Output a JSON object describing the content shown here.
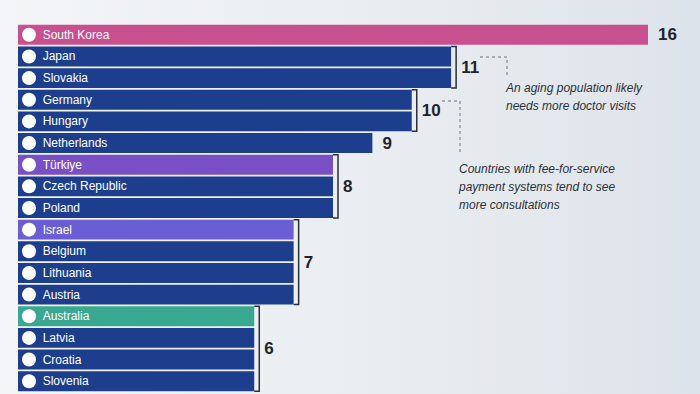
{
  "chart_data": {
    "type": "bar",
    "orientation": "horizontal",
    "categories": [
      "South Korea",
      "Japan",
      "Slovakia",
      "Germany",
      "Hungary",
      "Netherlands",
      "Türkiye",
      "Czech Republic",
      "Poland",
      "Israel",
      "Belgium",
      "Lithuania",
      "Austria",
      "Australia",
      "Latvia",
      "Croatia",
      "Slovenia"
    ],
    "values": [
      16,
      11,
      11,
      10,
      10,
      9,
      8,
      8,
      8,
      7,
      7,
      7,
      7,
      6,
      6,
      6,
      6
    ],
    "colors": [
      "#c8508f",
      "#1d3e8c",
      "#1d3e8c",
      "#1d3e8c",
      "#1d3e8c",
      "#1d3e8c",
      "#7a4fc6",
      "#1d3e8c",
      "#1d3e8c",
      "#6b5dd3",
      "#1d3e8c",
      "#1d3e8c",
      "#1d3e8c",
      "#3aa891",
      "#1d3e8c",
      "#1d3e8c",
      "#1d3e8c"
    ],
    "xlim": [
      0,
      16
    ],
    "tick_labels": false,
    "grid": false,
    "data_labels": true,
    "annotations": [
      "An aging population likely\nneeds more doctor visits",
      "Countries with fee-for-service\npayment systems tend to see\nmore consultations"
    ]
  }
}
